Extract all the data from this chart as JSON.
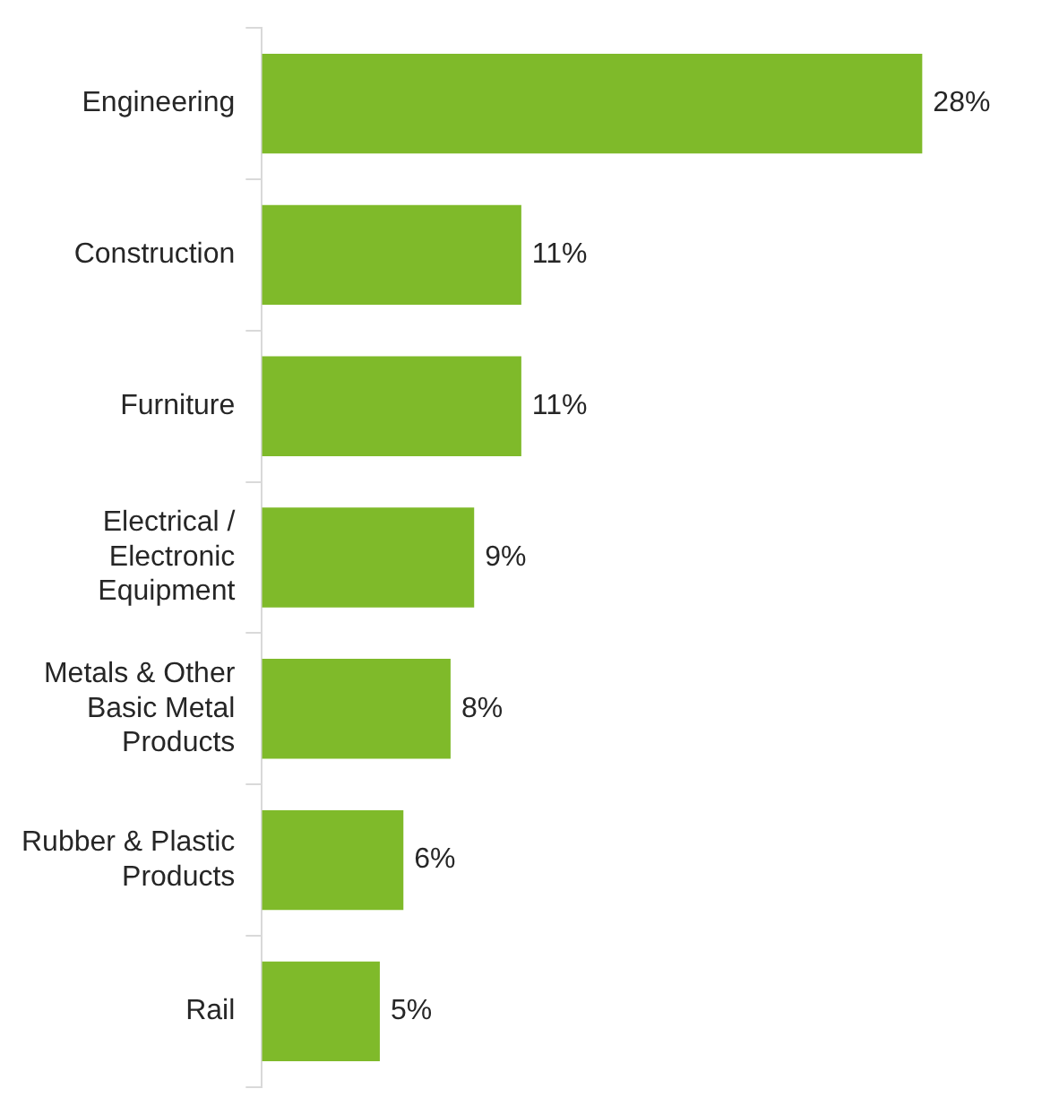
{
  "chart_data": {
    "type": "bar",
    "orientation": "horizontal",
    "categories": [
      "Engineering",
      "Construction",
      "Furniture",
      "Electrical / Electronic Equipment",
      "Metals & Other Basic Metal Products",
      "Rubber & Plastic Products",
      "Rail"
    ],
    "values": [
      28,
      11,
      11,
      9,
      8,
      6,
      5
    ],
    "value_labels": [
      "28%",
      "11%",
      "11%",
      "9%",
      "8%",
      "6%",
      "5%"
    ],
    "color": "#7fba2a"
  }
}
